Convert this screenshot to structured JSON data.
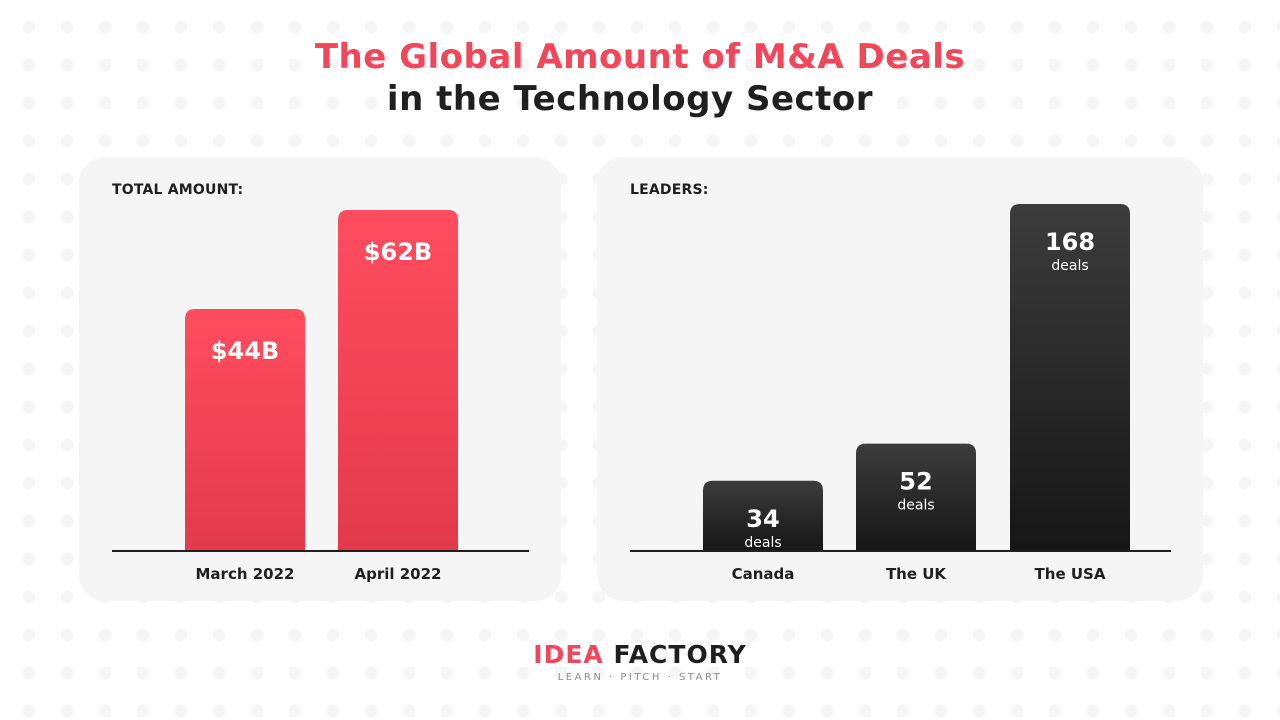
{
  "header": {
    "title_line1": "The Global Amount of M&A Deals",
    "title_line2": "in the Technology Sector"
  },
  "colors": {
    "accent_red": "#f2475a",
    "dark": "#222222",
    "panel_bg": "#f5f5f5"
  },
  "chart_data": [
    {
      "type": "bar",
      "panel_label": "TOTAL AMOUNT:",
      "categories": [
        "March 2022",
        "April 2022"
      ],
      "values": [
        44,
        62
      ],
      "value_labels": [
        "$44B",
        "$62B"
      ],
      "unit_labels": [
        "",
        ""
      ],
      "ylim": [
        0,
        62
      ],
      "color": "#f2475a",
      "grid": false
    },
    {
      "type": "bar",
      "panel_label": "LEADERS:",
      "categories": [
        "Canada",
        "The UK",
        "The USA"
      ],
      "values": [
        34,
        52,
        168
      ],
      "value_labels": [
        "34",
        "52",
        "168"
      ],
      "unit_labels": [
        "deals",
        "deals",
        "deals"
      ],
      "ylim": [
        0,
        168
      ],
      "color": "#222222",
      "grid": false
    }
  ],
  "brand": {
    "word1": "IDEA",
    "word2": "FACTORY",
    "tagline": "LEARN · PITCH · START"
  }
}
